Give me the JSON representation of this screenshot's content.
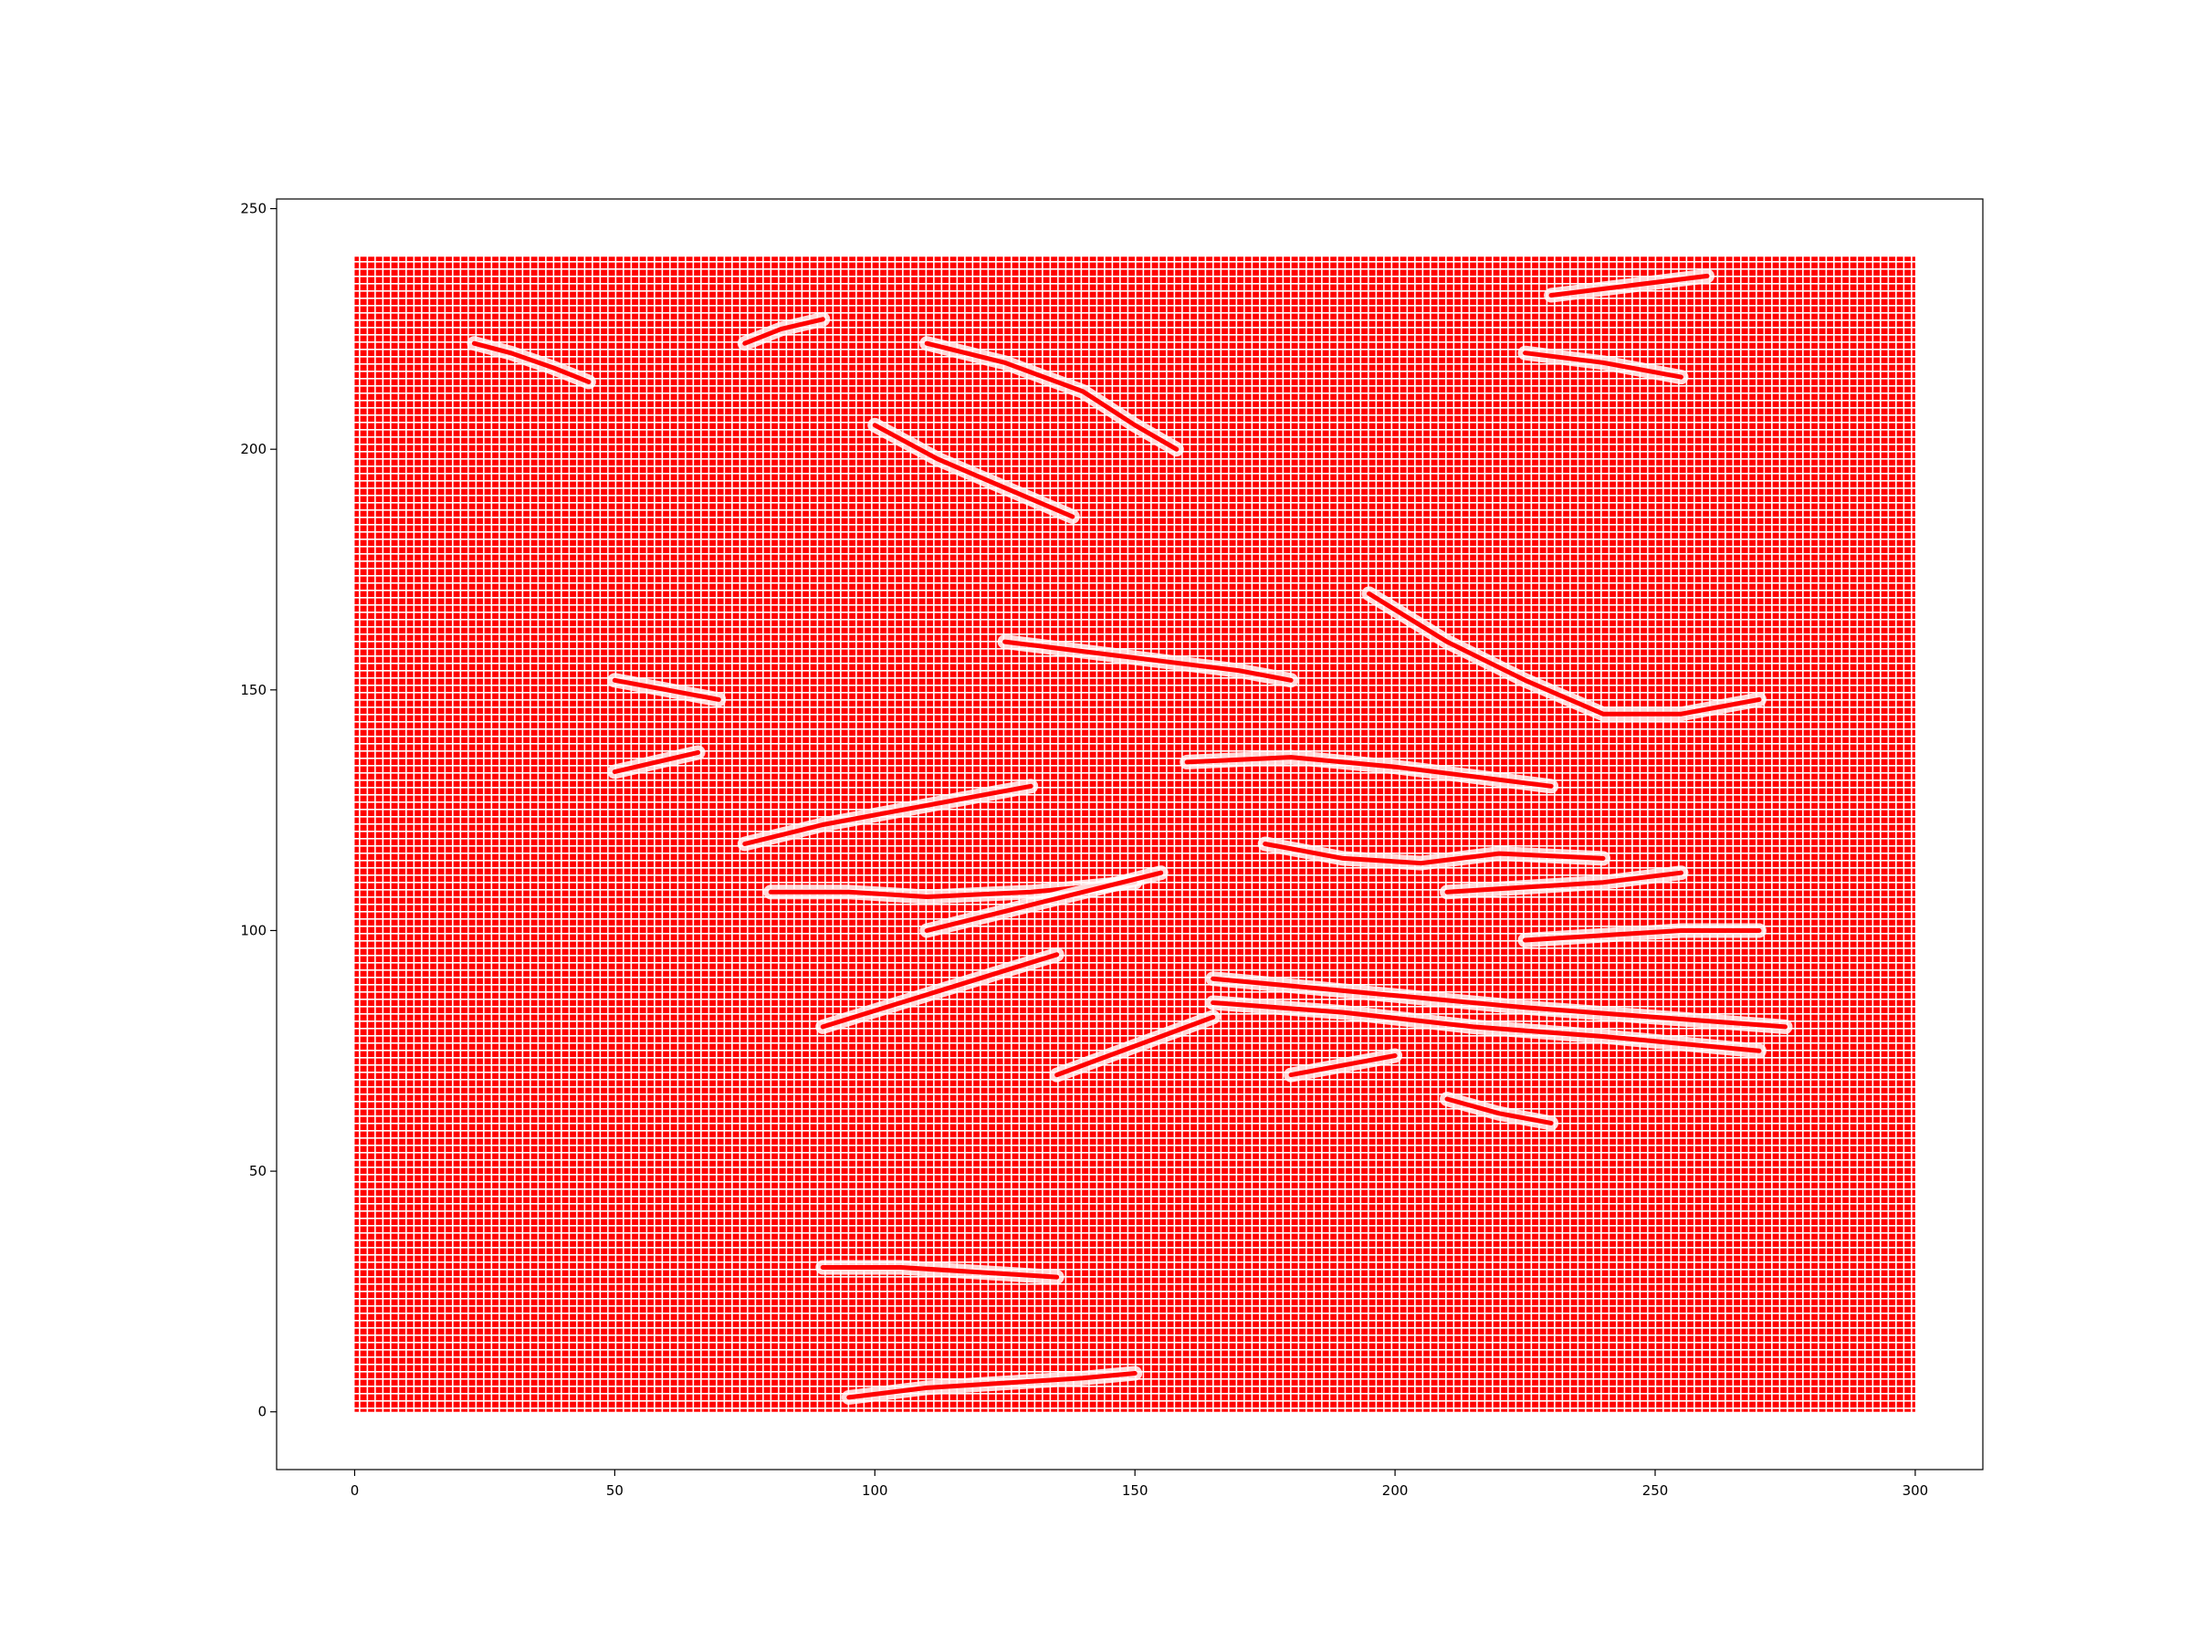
{
  "chart_data": {
    "type": "quiver",
    "title": "",
    "xlabel": "",
    "ylabel": "",
    "xlim": [
      -15,
      313
    ],
    "ylim": [
      -12,
      252
    ],
    "xticks": [
      0,
      50,
      100,
      150,
      200,
      250,
      300
    ],
    "yticks": [
      0,
      50,
      100,
      150,
      200,
      250
    ],
    "xtick_labels": [
      "0",
      "50",
      "100",
      "150",
      "200",
      "250",
      "300"
    ],
    "ytick_labels": [
      "0",
      "50",
      "100",
      "150",
      "200",
      "250"
    ],
    "grid": false,
    "legend": "none",
    "vector_color": "#ff0000",
    "background_color": "#ffffff",
    "field_x_range": [
      0,
      300
    ],
    "field_y_range": [
      0,
      240
    ],
    "flow_streaks": [
      {
        "x": [
          100,
          112,
          125,
          138
        ],
        "y": [
          205,
          198,
          192,
          186
        ]
      },
      {
        "x": [
          110,
          125,
          140,
          150,
          158
        ],
        "y": [
          222,
          218,
          212,
          205,
          200
        ]
      },
      {
        "x": [
          125,
          140,
          155,
          170,
          180
        ],
        "y": [
          160,
          158,
          156,
          154,
          152
        ]
      },
      {
        "x": [
          195,
          210,
          225,
          240,
          255,
          270
        ],
        "y": [
          170,
          160,
          152,
          145,
          145,
          148
        ]
      },
      {
        "x": [
          160,
          180,
          200,
          215,
          230
        ],
        "y": [
          135,
          136,
          134,
          132,
          130
        ]
      },
      {
        "x": [
          165,
          185,
          205,
          225,
          250,
          275
        ],
        "y": [
          90,
          88,
          86,
          84,
          82,
          80
        ]
      },
      {
        "x": [
          165,
          190,
          215,
          240,
          270
        ],
        "y": [
          85,
          83,
          80,
          78,
          75
        ]
      },
      {
        "x": [
          75,
          90,
          105,
          120,
          130
        ],
        "y": [
          118,
          122,
          125,
          128,
          130
        ]
      },
      {
        "x": [
          80,
          95,
          110,
          130,
          150
        ],
        "y": [
          108,
          108,
          107,
          108,
          110
        ]
      },
      {
        "x": [
          110,
          125,
          140,
          155
        ],
        "y": [
          100,
          104,
          108,
          112
        ]
      },
      {
        "x": [
          90,
          105,
          120,
          135
        ],
        "y": [
          80,
          85,
          90,
          95
        ]
      },
      {
        "x": [
          135,
          145,
          155,
          165
        ],
        "y": [
          70,
          74,
          78,
          82
        ]
      },
      {
        "x": [
          175,
          190,
          205,
          220,
          240
        ],
        "y": [
          118,
          115,
          114,
          116,
          115
        ]
      },
      {
        "x": [
          210,
          225,
          240,
          255
        ],
        "y": [
          108,
          109,
          110,
          112
        ]
      },
      {
        "x": [
          225,
          240,
          255,
          270
        ],
        "y": [
          98,
          99,
          100,
          100
        ]
      },
      {
        "x": [
          23,
          30,
          38,
          45
        ],
        "y": [
          222,
          220,
          217,
          214
        ]
      },
      {
        "x": [
          75,
          82,
          90
        ],
        "y": [
          222,
          225,
          227
        ]
      },
      {
        "x": [
          225,
          240,
          255
        ],
        "y": [
          220,
          218,
          215
        ]
      },
      {
        "x": [
          230,
          245,
          260
        ],
        "y": [
          232,
          234,
          236
        ]
      },
      {
        "x": [
          50,
          60,
          70
        ],
        "y": [
          152,
          150,
          148
        ]
      },
      {
        "x": [
          50,
          58,
          66
        ],
        "y": [
          133,
          135,
          137
        ]
      },
      {
        "x": [
          90,
          105,
          120,
          135
        ],
        "y": [
          30,
          30,
          29,
          28
        ]
      },
      {
        "x": [
          180,
          190,
          200
        ],
        "y": [
          70,
          72,
          74
        ]
      },
      {
        "x": [
          210,
          220,
          230
        ],
        "y": [
          65,
          62,
          60
        ]
      },
      {
        "x": [
          95,
          110,
          125,
          140,
          150
        ],
        "y": [
          3,
          5,
          6,
          7,
          8
        ]
      }
    ]
  }
}
